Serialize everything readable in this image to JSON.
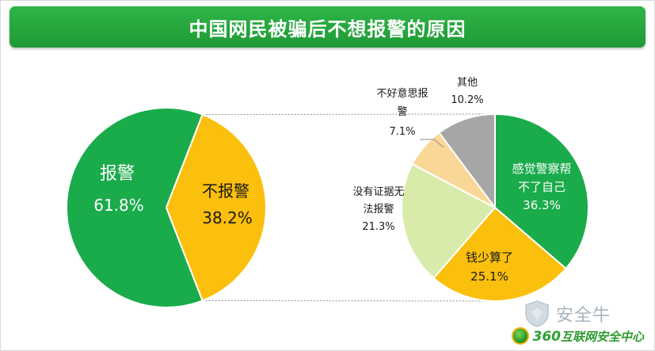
{
  "title": "中国网民被骗后不想报警的原因",
  "chart_data": [
    {
      "type": "pie",
      "title": "",
      "slices": [
        {
          "label": "报警",
          "value": 61.8,
          "value_label": "61.8%",
          "color": "#1aab4b"
        },
        {
          "label": "不报警",
          "value": 38.2,
          "value_label": "38.2%",
          "color": "#fbbf0d"
        }
      ]
    },
    {
      "type": "pie",
      "title": "",
      "breakdown_of": "不报警",
      "slices": [
        {
          "label": "感觉警察帮不了自己",
          "label_lines": [
            "感觉警察帮",
            "不了自己"
          ],
          "value": 36.3,
          "value_label": "36.3%",
          "color": "#1aab4b"
        },
        {
          "label": "钱少算了",
          "label_lines": [
            "钱少算了"
          ],
          "value": 25.1,
          "value_label": "25.1%",
          "color": "#fbbf0d"
        },
        {
          "label": "没有证据无法报警",
          "label_lines": [
            "没有证据无",
            "法报警"
          ],
          "value": 21.3,
          "value_label": "21.3%",
          "color": "#d9ebab"
        },
        {
          "label": "不好意思报警",
          "label_lines": [
            "不好意思报",
            "警"
          ],
          "value": 7.1,
          "value_label": "7.1%",
          "color": "#fad796"
        },
        {
          "label": "其他",
          "label_lines": [
            "其他"
          ],
          "value": 10.2,
          "value_label": "10.2%",
          "color": "#a6a6a6"
        }
      ]
    }
  ],
  "watermark": {
    "text": "安全牛",
    "icon": "shield-icon"
  },
  "footer": {
    "logo_number": "360",
    "logo_text": "互联网安全中心",
    "icon": "globe-logo-icon"
  }
}
